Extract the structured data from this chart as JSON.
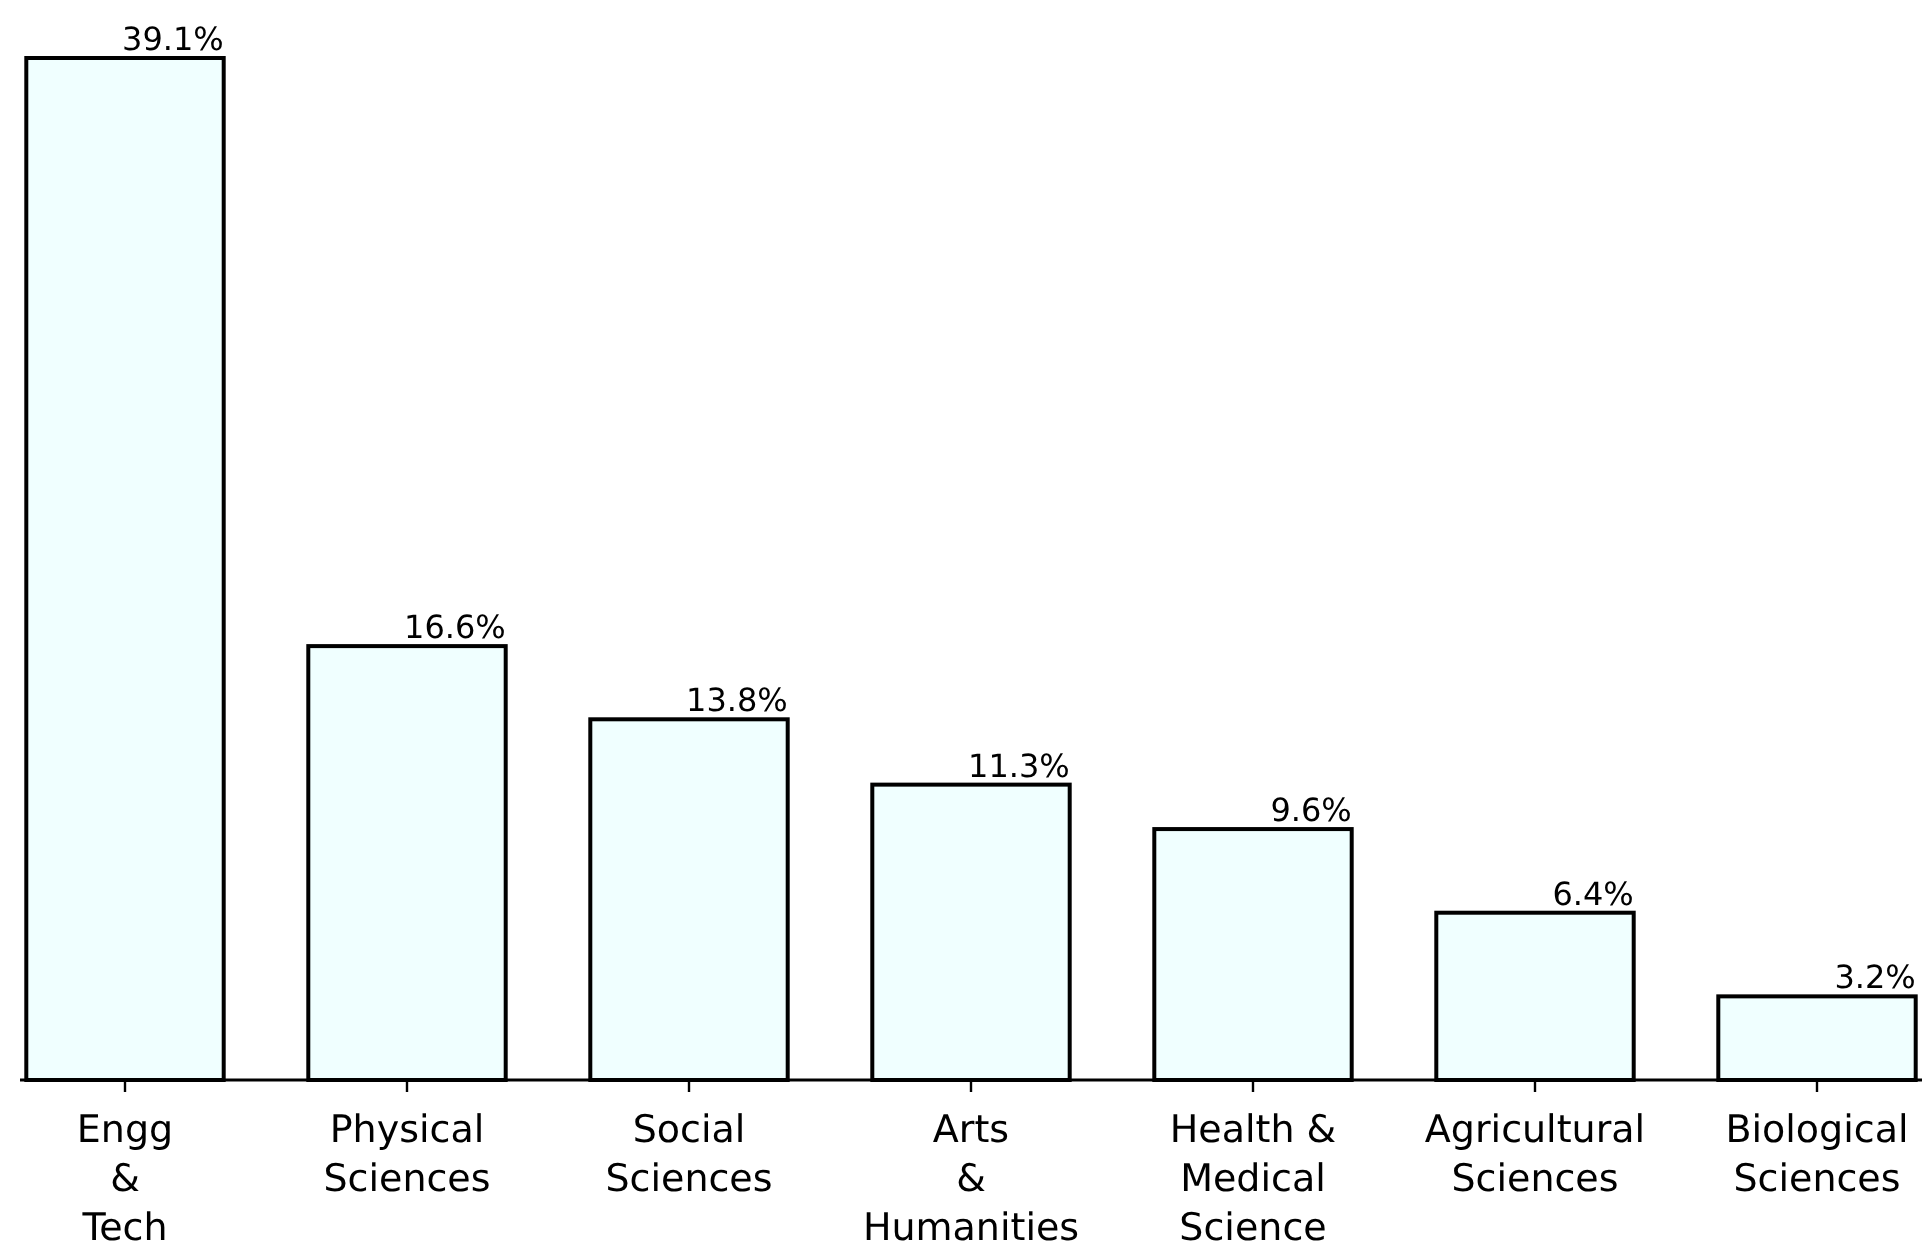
{
  "chart_data": {
    "type": "bar",
    "categories": [
      "Engg\n&\nTech",
      "Physical\nSciences",
      "Social\nSciences",
      "Arts\n&\nHumanities",
      "Health &\nMedical\nScience",
      "Agricultural\nSciences",
      "Biological\nSciences"
    ],
    "values": [
      39.1,
      16.6,
      13.8,
      11.3,
      9.6,
      6.4,
      3.2
    ],
    "value_labels": [
      "39.1%",
      "16.6%",
      "13.8%",
      "11.3%",
      "9.6%",
      "6.4%",
      "3.2%"
    ],
    "color": "#f0ffff"
  }
}
